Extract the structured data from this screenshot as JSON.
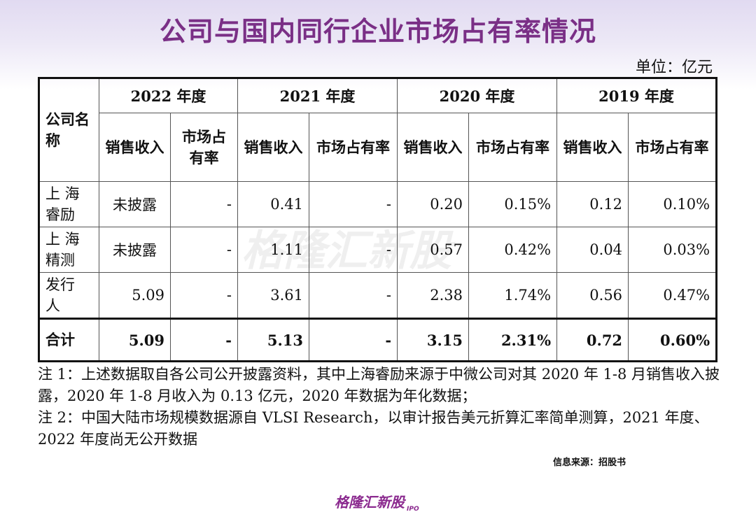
{
  "title": "公司与国内同行企业市场占有率情况",
  "unit": "单位：亿元",
  "table": {
    "company_header": "公司名称",
    "years": [
      "2022 年度",
      "2021 年度",
      "2020 年度",
      "2019 年度"
    ],
    "sub_headers": {
      "sales": "销售收入",
      "share": "市场占有率"
    },
    "rows": [
      {
        "name_line1": "上 海",
        "name_line2": "睿励",
        "cells": [
          "未披露",
          "-",
          "0.41",
          "-",
          "0.20",
          "0.15%",
          "0.12",
          "0.10%"
        ]
      },
      {
        "name_line1": "上 海",
        "name_line2": "精测",
        "cells": [
          "未披露",
          "-",
          "1.11",
          "-",
          "0.57",
          "0.42%",
          "0.04",
          "0.03%"
        ]
      },
      {
        "name_line1": "发行",
        "name_line2": "人",
        "cells": [
          "5.09",
          "-",
          "3.61",
          "-",
          "2.38",
          "1.74%",
          "0.56",
          "0.47%"
        ]
      },
      {
        "name_line1": "合计",
        "name_line2": "",
        "cells": [
          "5.09",
          "-",
          "5.13",
          "-",
          "3.15",
          "2.31%",
          "0.72",
          "0.60%"
        ]
      }
    ]
  },
  "notes": [
    "注 1：上述数据取自各公司公开披露资料，其中上海睿励来源于中微公司对其 2020 年 1-8 月销售收入披露，2020 年 1-8 月收入为 0.13 亿元，2020 年数据为年化数据；",
    "注 2：中国大陆市场规模数据源自 VLSI Research，以审计报告美元折算汇率简单测算，2021 年度、2022 年度尚无公开数据"
  ],
  "source": "信息来源：招股书",
  "brand": "格隆汇新股",
  "brand_suffix": "IPO",
  "watermark": "格隆汇新股"
}
